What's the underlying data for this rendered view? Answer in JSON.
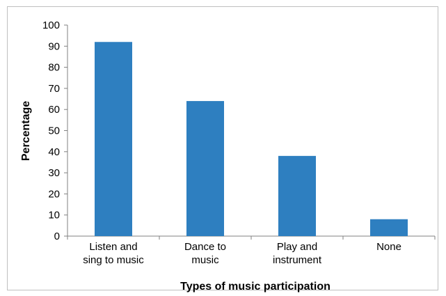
{
  "chart_data": {
    "type": "bar",
    "title": "",
    "xlabel": "Types of music participation",
    "ylabel": "Percentage",
    "ylim": [
      0,
      100
    ],
    "yticks": [
      0,
      10,
      20,
      30,
      40,
      50,
      60,
      70,
      80,
      90,
      100
    ],
    "grid": false,
    "legend": "none",
    "categories": [
      [
        "Listen and",
        "sing to music"
      ],
      [
        "Dance to",
        "music"
      ],
      [
        "Play and",
        "instrument"
      ],
      [
        "None"
      ]
    ],
    "values": [
      92,
      64,
      38,
      8
    ],
    "bar_color": "#2E7FC0",
    "axis_color": "#808080"
  }
}
